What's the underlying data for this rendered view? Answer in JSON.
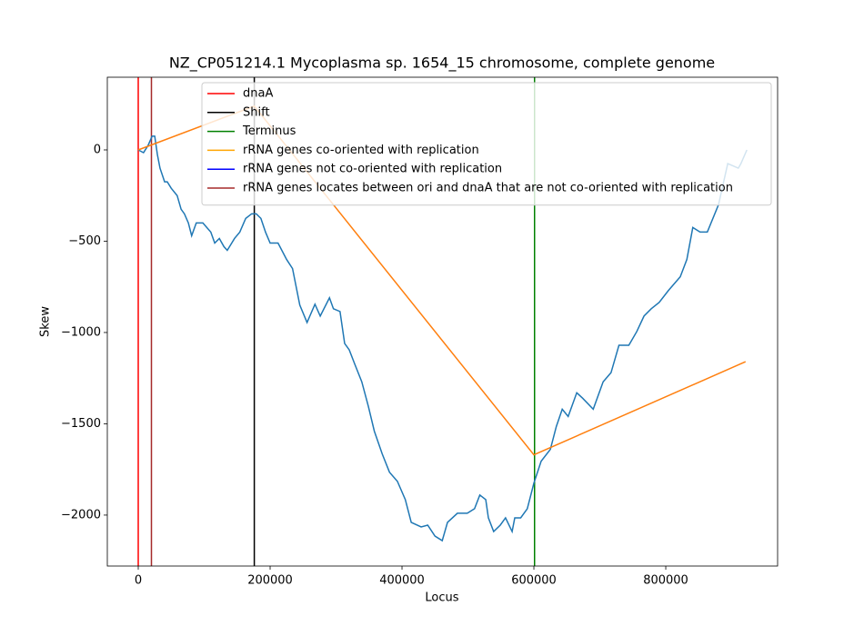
{
  "chart_data": {
    "type": "line",
    "title": "NZ_CP051214.1 Mycoplasma sp. 1654_15 chromosome, complete genome",
    "x_label": "Locus",
    "y_label": "Skew",
    "xlim": [
      -46900,
      969600
    ],
    "ylim": [
      -2279,
      398
    ],
    "xticks": [
      0,
      200000,
      400000,
      600000,
      800000
    ],
    "yticks": [
      {
        "value": -2000,
        "label": "−2000"
      },
      {
        "value": -1500,
        "label": "−1500"
      },
      {
        "value": -1000,
        "label": "−1000"
      },
      {
        "value": -500,
        "label": "−500"
      },
      0
    ],
    "series": [
      {
        "color": "#1f77b4",
        "x": [
          0,
          8000,
          15000,
          21000,
          25000,
          29000,
          33000,
          40000,
          44000,
          50000,
          59000,
          65000,
          70000,
          76000,
          81000,
          88000,
          98000,
          110000,
          116000,
          123000,
          130000,
          135000,
          146000,
          154000,
          163000,
          172000,
          179000,
          186000,
          193000,
          200000,
          212000,
          225000,
          234000,
          245000,
          256000,
          268000,
          276000,
          290000,
          296000,
          306000,
          313000,
          320000,
          328000,
          339000,
          349000,
          358000,
          370000,
          381000,
          393000,
          405000,
          414000,
          429000,
          439000,
          450000,
          461000,
          469000,
          484000,
          499000,
          510000,
          518000,
          527000,
          531000,
          539000,
          549000,
          557000,
          567000,
          571000,
          580000,
          590000,
          600000,
          611000,
          625000,
          634000,
          643000,
          652000,
          665000,
          674000,
          690000,
          705000,
          717000,
          729000,
          744000,
          756000,
          767000,
          778000,
          790000,
          804000,
          822000,
          832000,
          841000,
          852000,
          863000,
          880000,
          894000,
          910000,
          914000,
          923000
        ],
        "values": [
          0,
          -15,
          25,
          75,
          75,
          -25,
          -100,
          -175,
          -175,
          -210,
          -250,
          -325,
          -350,
          -400,
          -470,
          -400,
          -400,
          -450,
          -510,
          -485,
          -530,
          -550,
          -485,
          -450,
          -375,
          -350,
          -350,
          -375,
          -450,
          -510,
          -510,
          -600,
          -650,
          -850,
          -945,
          -845,
          -910,
          -810,
          -870,
          -885,
          -1060,
          -1095,
          -1170,
          -1270,
          -1405,
          -1540,
          -1665,
          -1765,
          -1815,
          -1915,
          -2040,
          -2065,
          -2055,
          -2115,
          -2140,
          -2040,
          -1990,
          -1990,
          -1965,
          -1890,
          -1915,
          -2015,
          -2090,
          -2055,
          -2015,
          -2090,
          -2015,
          -2015,
          -1965,
          -1825,
          -1705,
          -1640,
          -1515,
          -1420,
          -1460,
          -1330,
          -1360,
          -1420,
          -1270,
          -1220,
          -1070,
          -1070,
          -995,
          -910,
          -870,
          -835,
          -770,
          -695,
          -600,
          -425,
          -450,
          -450,
          -300,
          -75,
          -100,
          -75,
          0
        ]
      },
      {
        "color": "#ff7f0e",
        "x": [
          0,
          176000,
          600000,
          921000
        ],
        "values": [
          0,
          240,
          -1670,
          -1160
        ]
      }
    ],
    "vlines": [
      {
        "x": 0,
        "color": "red"
      },
      {
        "x": 20000,
        "color": "brown"
      },
      {
        "x": 176000,
        "color": "black"
      },
      {
        "x": 601000,
        "color": "green"
      }
    ],
    "legend": {
      "loc": "upper right",
      "entries": [
        {
          "name": "dnaA",
          "color": "red"
        },
        {
          "name": "Shift",
          "color": "black"
        },
        {
          "name": "Terminus",
          "color": "green"
        },
        {
          "name": "rRNA genes co-oriented with replication",
          "color": "orange"
        },
        {
          "name": "rRNA genes not co-oriented with replication",
          "color": "blue"
        },
        {
          "name": "rRNA genes locates between ori and dnaA that are not co-oriented with replication",
          "color": "brown"
        }
      ]
    }
  }
}
